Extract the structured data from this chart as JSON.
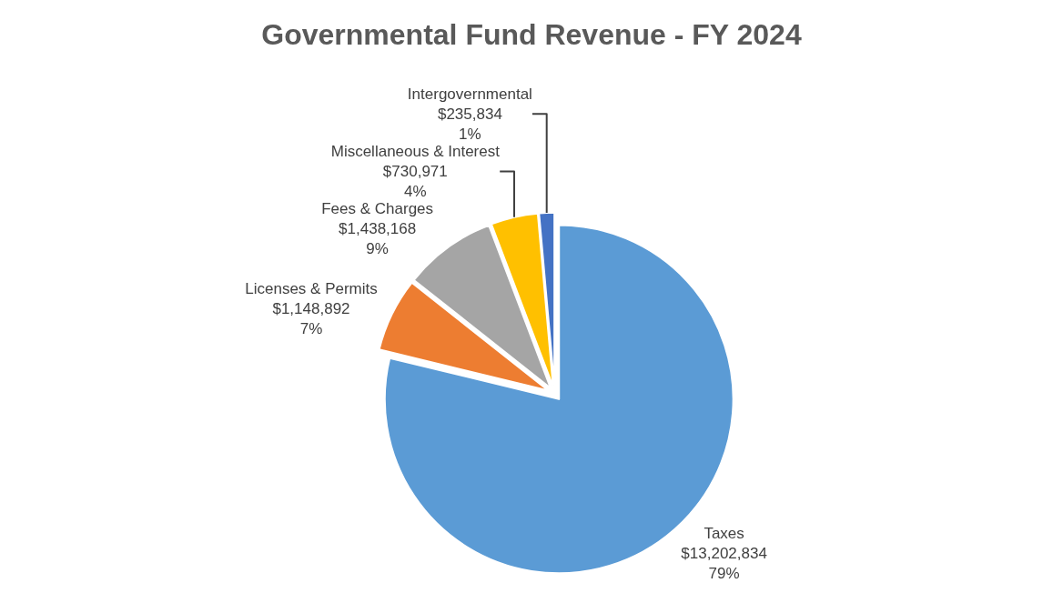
{
  "chart_data": {
    "type": "pie",
    "title": "Governmental Fund Revenue - FY 2024",
    "categories": [
      "Taxes",
      "Licenses & Permits",
      "Fees & Charges",
      "Miscellaneous & Interest",
      "Intergovernmental"
    ],
    "values": [
      13202834,
      1148892,
      1438168,
      730971,
      235834
    ],
    "value_labels": [
      "$13,202,834\n79%",
      "$1,148,892\n7%",
      "$1,438,168\n9%",
      "$730,971\n4%",
      "$235,834\n1%"
    ],
    "colors": [
      "#5b9bd5",
      "#ed7d31",
      "#a5a5a5",
      "#ffc000",
      "#4472c4"
    ],
    "legend": false
  }
}
